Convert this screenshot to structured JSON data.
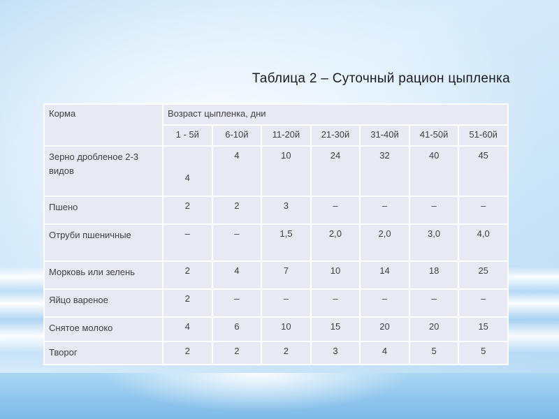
{
  "slide": {
    "title": "Таблица 2 – Суточный рацион цыпленка"
  },
  "table": {
    "corner_header": "Корма",
    "group_header": "Возраст цыпленка, дни",
    "age_columns": [
      "1 - 5й",
      "6-10й",
      "11-20й",
      "21-30й",
      "31-40й",
      "41-50й",
      "51-60й"
    ],
    "rows": [
      {
        "label": "Зерно дробленое 2-3 видов",
        "values": [
          "4",
          "4",
          "10",
          "24",
          "32",
          "40",
          "45"
        ]
      },
      {
        "label": "Пшено",
        "values": [
          "2",
          "2",
          "3",
          "–",
          "–",
          "–",
          "–"
        ]
      },
      {
        "label": "Отруби пшеничные",
        "values": [
          "–",
          "–",
          "1,5",
          "2,0",
          "2,0",
          "3,0",
          "4,0"
        ]
      },
      {
        "label": "Морковь или зелень",
        "values": [
          "2",
          "4",
          "7",
          "10",
          "14",
          "18",
          "25"
        ]
      },
      {
        "label": "Яйцо вареное",
        "values": [
          "2",
          "–",
          "–",
          "–",
          "–",
          "–",
          "–"
        ]
      },
      {
        "label": "Снятое молоко",
        "values": [
          "4",
          "6",
          "10",
          "15",
          "20",
          "20",
          "15"
        ]
      },
      {
        "label": "Творог",
        "values": [
          "2",
          "2",
          "2",
          "3",
          "4",
          "5",
          "5"
        ]
      }
    ]
  },
  "colors": {
    "cell_background": "#e8eaf3",
    "cell_border": "#ffffff",
    "table_text": "#3f4048",
    "title_text": "#181822",
    "background_blue": "#c5e1f7",
    "bottom_band_blue": "#8fc6ed"
  }
}
